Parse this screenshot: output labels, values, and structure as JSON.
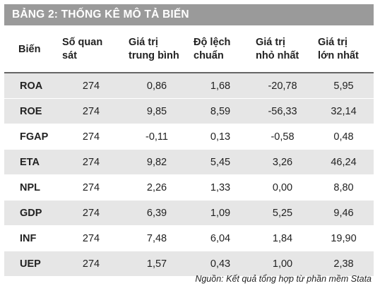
{
  "title": "BẢNG 2: THỐNG KÊ MÔ TẢ BIẾN",
  "headers": [
    [
      "Biến",
      ""
    ],
    [
      "Số quan",
      "sát"
    ],
    [
      "Giá trị",
      "trung bình"
    ],
    [
      "Độ lệch",
      "chuẩn"
    ],
    [
      "Giá trị",
      "nhỏ nhất"
    ],
    [
      "Giá trị",
      "lớn nhất"
    ]
  ],
  "rows": [
    [
      "ROA",
      "274",
      "0,86",
      "1,68",
      "-20,78",
      "5,95"
    ],
    [
      "ROE",
      "274",
      "9,85",
      "8,59",
      "-56,33",
      "32,14"
    ],
    [
      "FGAP",
      "274",
      "-0,11",
      "0,13",
      "-0,58",
      "0,48"
    ],
    [
      "ETA",
      "274",
      "9,82",
      "5,45",
      "3,26",
      "46,24"
    ],
    [
      "NPL",
      "274",
      "2,26",
      "1,33",
      "0,00",
      "8,80"
    ],
    [
      "GDP",
      "274",
      "6,39",
      "1,09",
      "5,25",
      "9,46"
    ],
    [
      "INF",
      "274",
      "7,48",
      "6,04",
      "1,84",
      "19,90"
    ],
    [
      "UEP",
      "274",
      "1,57",
      "0,43",
      "1,00",
      "2,38"
    ]
  ],
  "source": "Nguồn: Kết quả tổng hợp từ phần mềm Stata"
}
